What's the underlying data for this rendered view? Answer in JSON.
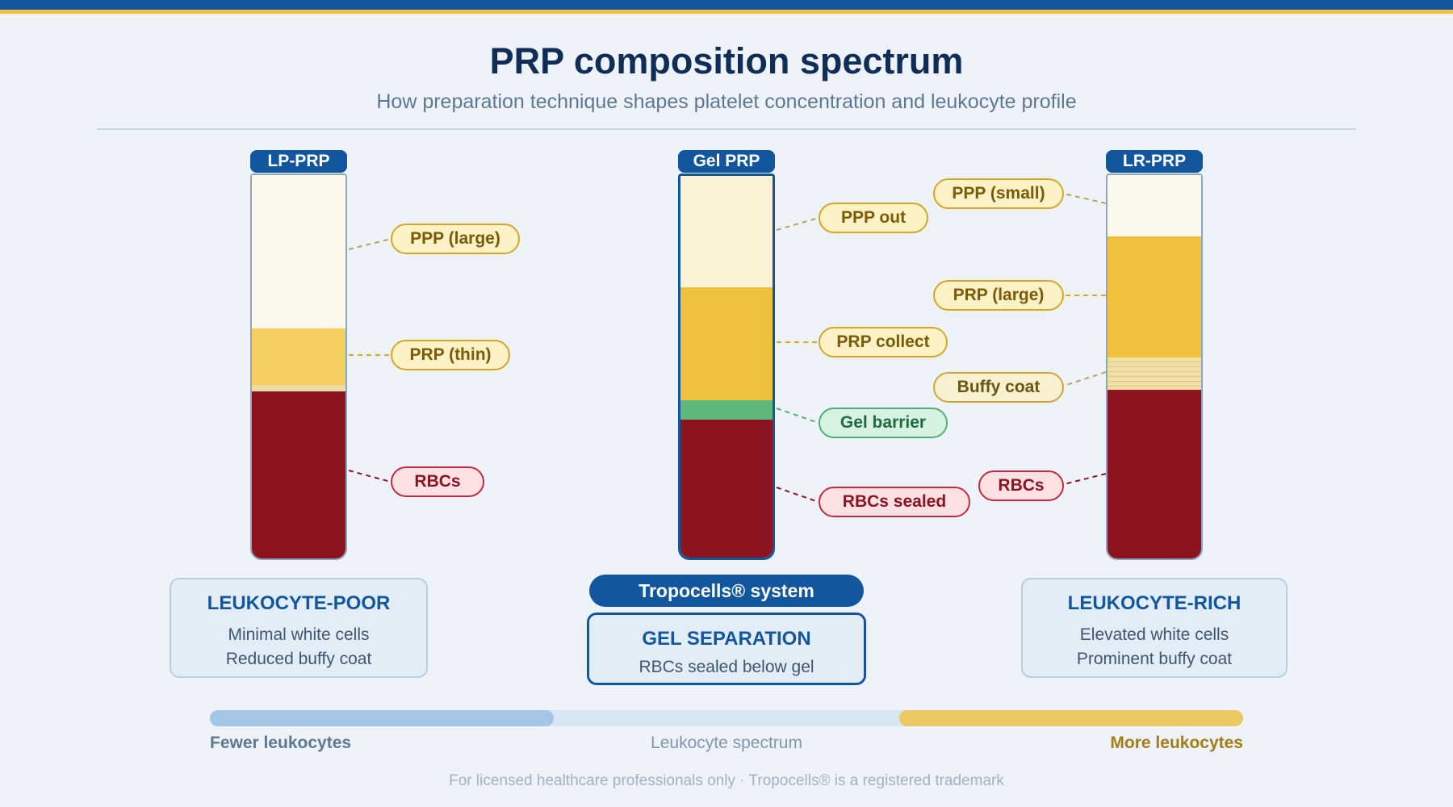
{
  "header": {
    "title": "PRP composition spectrum",
    "subtitle": "How preparation technique shapes platelet concentration and leukocyte profile"
  },
  "tubes": [
    {
      "badge": "LP-PRP",
      "labels": {
        "ppp": "PPP (large)",
        "prp": "PRP (thin)",
        "rbc": "RBCs"
      },
      "card": {
        "title": "LEUKOCYTE-POOR",
        "line1": "Minimal white cells",
        "line2": "Reduced buffy coat"
      }
    },
    {
      "badge": "Gel PRP",
      "labels": {
        "ppp": "PPP out",
        "prp": "PRP collect",
        "gel": "Gel barrier",
        "rbc": "RBCs sealed"
      },
      "system": "Tropocells® system",
      "card": {
        "title": "GEL SEPARATION",
        "line1": "RBCs sealed below gel"
      }
    },
    {
      "badge": "LR-PRP",
      "labels": {
        "ppp": "PPP (small)",
        "prp": "PRP (large)",
        "buffy": "Buffy coat",
        "rbc": "RBCs"
      },
      "card": {
        "title": "LEUKOCYTE-RICH",
        "line1": "Elevated white cells",
        "line2": "Prominent buffy coat"
      }
    }
  ],
  "spectrum": {
    "left": "Fewer leukocytes",
    "middle": "Leukocyte spectrum",
    "right": "More leukocytes"
  },
  "footer": "For licensed healthcare professionals only · Tropocells® is a registered trademark",
  "colors": {
    "brand": "#12579e",
    "accent_gold": "#efc13d",
    "ppp": "#fcf9ec",
    "prp": "#efc13d",
    "gel": "#5bb87a",
    "rbc": "#8c1420"
  }
}
